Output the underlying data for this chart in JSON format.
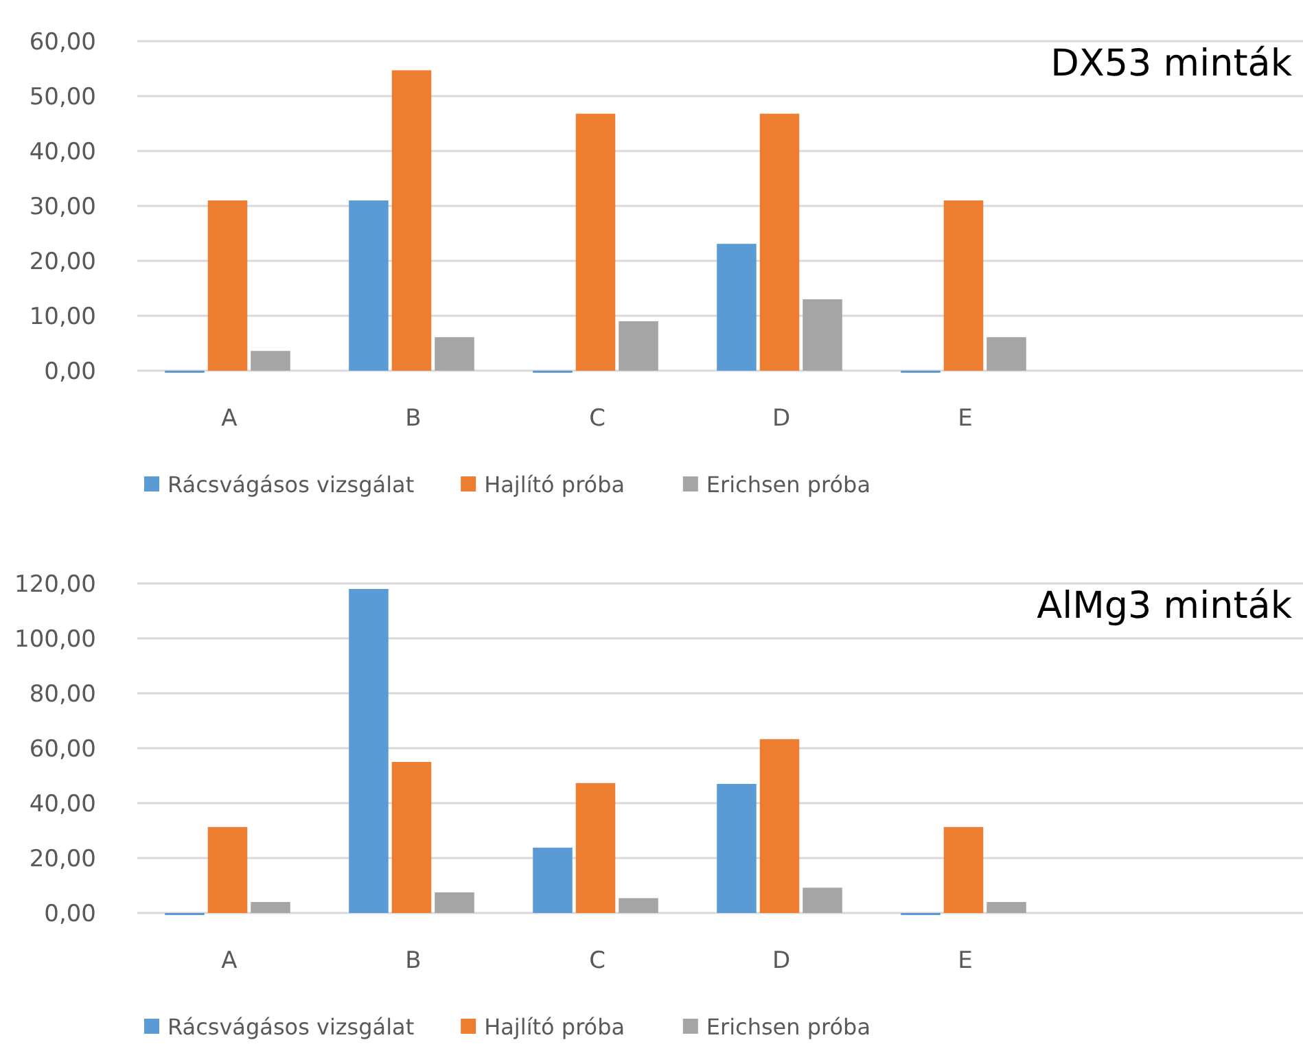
{
  "chart_data": [
    {
      "type": "bar",
      "title": "DX53 minták",
      "categories": [
        "A",
        "B",
        "C",
        "D",
        "E"
      ],
      "series": [
        {
          "name": "Rácsvágásos vizsgálat",
          "color": "#5b9bd5",
          "values": [
            0,
            31,
            0,
            23.1,
            0
          ]
        },
        {
          "name": "Hajlító próba",
          "color": "#ed7d31",
          "values": [
            31,
            54.7,
            46.8,
            46.8,
            31
          ]
        },
        {
          "name": "Erichsen próba",
          "color": "#a5a5a5",
          "values": [
            3.6,
            6.1,
            9,
            13,
            6.1
          ]
        }
      ],
      "ylim": [
        0,
        60
      ],
      "yticks": [
        {
          "value": 0,
          "label": "0,00"
        },
        {
          "value": 10,
          "label": "10,00"
        },
        {
          "value": 20,
          "label": "20,00"
        },
        {
          "value": 30,
          "label": "30,00"
        },
        {
          "value": 40,
          "label": "40,00"
        },
        {
          "value": 50,
          "label": "50,00"
        },
        {
          "value": 60,
          "label": "60,00"
        }
      ],
      "grid": "y",
      "legend": "bottom"
    },
    {
      "type": "bar",
      "title": "AlMg3 minták",
      "categories": [
        "A",
        "B",
        "C",
        "D",
        "E"
      ],
      "series": [
        {
          "name": "Rácsvágásos vizsgálat",
          "color": "#5b9bd5",
          "values": [
            0,
            118,
            23.8,
            47,
            0
          ]
        },
        {
          "name": "Hajlító próba",
          "color": "#ed7d31",
          "values": [
            31.3,
            55,
            47.3,
            63.3,
            31.3
          ]
        },
        {
          "name": "Erichsen próba",
          "color": "#a5a5a5",
          "values": [
            4,
            7.5,
            5.4,
            9.2,
            4
          ]
        }
      ],
      "ylim": [
        0,
        120
      ],
      "yticks": [
        {
          "value": 0,
          "label": "0,00"
        },
        {
          "value": 20,
          "label": "20,00"
        },
        {
          "value": 40,
          "label": "40,00"
        },
        {
          "value": 60,
          "label": "60,00"
        },
        {
          "value": 80,
          "label": "80,00"
        },
        {
          "value": 100,
          "label": "100,00"
        },
        {
          "value": 120,
          "label": "120,00"
        }
      ],
      "grid": "y",
      "legend": "bottom"
    }
  ]
}
